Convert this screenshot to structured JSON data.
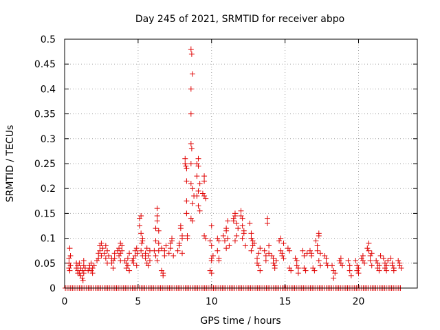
{
  "chart_data": {
    "type": "scatter",
    "title": "Day 245 of 2021, SRMTID for receiver abpo",
    "xlabel": "GPS time / hours",
    "ylabel": "SRMTID / TECUs",
    "xlim": [
      0,
      24
    ],
    "ylim": [
      0,
      0.5
    ],
    "xticks": [
      0,
      5,
      10,
      15,
      20
    ],
    "xtick_labels": [
      "0",
      "5",
      "10",
      "15",
      "20"
    ],
    "yticks": [
      0,
      0.05,
      0.1,
      0.15,
      0.2,
      0.25,
      0.3,
      0.35,
      0.4,
      0.45,
      0.5
    ],
    "ytick_labels": [
      "0",
      "0.05",
      "0.1",
      "0.15",
      "0.2",
      "0.25",
      "0.3",
      "0.35",
      "0.4",
      "0.45",
      "0.5"
    ],
    "grid": true,
    "marker": "+",
    "color": "#e00000",
    "series": [
      {
        "name": "SRMTID",
        "points": [
          [
            0.3,
            0.06
          ],
          [
            0.3,
            0.05
          ],
          [
            0.35,
            0.08
          ],
          [
            0.35,
            0.035
          ],
          [
            0.4,
            0.065
          ],
          [
            0.3,
            0.04
          ],
          [
            0.4,
            0.045
          ],
          [
            0.8,
            0.05
          ],
          [
            0.8,
            0.04
          ],
          [
            0.9,
            0.045
          ],
          [
            0.9,
            0.035
          ],
          [
            0.9,
            0.03
          ],
          [
            1.0,
            0.05
          ],
          [
            1.0,
            0.03
          ],
          [
            1.1,
            0.04
          ],
          [
            1.1,
            0.025
          ],
          [
            1.2,
            0.035
          ],
          [
            1.2,
            0.02
          ],
          [
            1.3,
            0.055
          ],
          [
            1.3,
            0.045
          ],
          [
            1.3,
            0.03
          ],
          [
            1.4,
            0.04
          ],
          [
            1.25,
            0.015
          ],
          [
            1.6,
            0.035
          ],
          [
            1.7,
            0.045
          ],
          [
            1.7,
            0.04
          ],
          [
            1.8,
            0.05
          ],
          [
            1.8,
            0.035
          ],
          [
            1.9,
            0.04
          ],
          [
            1.9,
            0.03
          ],
          [
            2.0,
            0.045
          ],
          [
            2.2,
            0.055
          ],
          [
            2.3,
            0.07
          ],
          [
            2.3,
            0.06
          ],
          [
            2.4,
            0.085
          ],
          [
            2.4,
            0.075
          ],
          [
            2.5,
            0.065
          ],
          [
            2.5,
            0.09
          ],
          [
            2.6,
            0.08
          ],
          [
            2.7,
            0.07
          ],
          [
            2.8,
            0.06
          ],
          [
            2.8,
            0.085
          ],
          [
            2.9,
            0.05
          ],
          [
            2.9,
            0.075
          ],
          [
            3.0,
            0.065
          ],
          [
            3.2,
            0.06
          ],
          [
            3.2,
            0.05
          ],
          [
            3.3,
            0.055
          ],
          [
            3.3,
            0.04
          ],
          [
            3.4,
            0.07
          ],
          [
            3.4,
            0.06
          ],
          [
            3.6,
            0.075
          ],
          [
            3.7,
            0.08
          ],
          [
            3.7,
            0.065
          ],
          [
            3.8,
            0.07
          ],
          [
            3.8,
            0.055
          ],
          [
            3.8,
            0.09
          ],
          [
            3.9,
            0.075
          ],
          [
            3.9,
            0.085
          ],
          [
            4.1,
            0.055
          ],
          [
            4.2,
            0.05
          ],
          [
            4.2,
            0.04
          ],
          [
            4.3,
            0.06
          ],
          [
            4.3,
            0.045
          ],
          [
            4.4,
            0.07
          ],
          [
            4.4,
            0.035
          ],
          [
            4.6,
            0.055
          ],
          [
            4.7,
            0.06
          ],
          [
            4.7,
            0.05
          ],
          [
            4.8,
            0.075
          ],
          [
            4.8,
            0.065
          ],
          [
            4.9,
            0.045
          ],
          [
            4.9,
            0.08
          ],
          [
            4.95,
            0.07
          ],
          [
            5.1,
            0.14
          ],
          [
            5.1,
            0.125
          ],
          [
            5.2,
            0.145
          ],
          [
            5.2,
            0.11
          ],
          [
            5.3,
            0.1
          ],
          [
            5.3,
            0.095
          ],
          [
            5.25,
            0.09
          ],
          [
            5.2,
            0.075
          ],
          [
            5.3,
            0.065
          ],
          [
            5.5,
            0.07
          ],
          [
            5.5,
            0.06
          ],
          [
            5.6,
            0.08
          ],
          [
            5.6,
            0.05
          ],
          [
            5.7,
            0.065
          ],
          [
            5.7,
            0.045
          ],
          [
            5.8,
            0.075
          ],
          [
            5.8,
            0.055
          ],
          [
            6.1,
            0.075
          ],
          [
            6.2,
            0.12
          ],
          [
            6.2,
            0.095
          ],
          [
            6.3,
            0.16
          ],
          [
            6.3,
            0.145
          ],
          [
            6.3,
            0.135
          ],
          [
            6.4,
            0.115
          ],
          [
            6.4,
            0.09
          ],
          [
            6.2,
            0.065
          ],
          [
            6.4,
            0.075
          ],
          [
            6.3,
            0.055
          ],
          [
            6.6,
            0.035
          ],
          [
            6.7,
            0.03
          ],
          [
            6.7,
            0.025
          ],
          [
            6.6,
            0.08
          ],
          [
            6.8,
            0.075
          ],
          [
            6.9,
            0.085
          ],
          [
            6.8,
            0.065
          ],
          [
            7.1,
            0.07
          ],
          [
            7.2,
            0.09
          ],
          [
            7.2,
            0.08
          ],
          [
            7.3,
            0.1
          ],
          [
            7.3,
            0.095
          ],
          [
            7.4,
            0.065
          ],
          [
            7.7,
            0.075
          ],
          [
            7.8,
            0.09
          ],
          [
            7.8,
            0.085
          ],
          [
            7.9,
            0.12
          ],
          [
            7.9,
            0.125
          ],
          [
            8.0,
            0.105
          ],
          [
            8.0,
            0.1
          ],
          [
            8.0,
            0.07
          ],
          [
            8.2,
            0.26
          ],
          [
            8.2,
            0.25
          ],
          [
            8.25,
            0.245
          ],
          [
            8.3,
            0.24
          ],
          [
            8.3,
            0.215
          ],
          [
            8.3,
            0.175
          ],
          [
            8.3,
            0.15
          ],
          [
            8.35,
            0.105
          ],
          [
            8.35,
            0.1
          ],
          [
            8.6,
            0.48
          ],
          [
            8.65,
            0.47
          ],
          [
            8.7,
            0.43
          ],
          [
            8.6,
            0.4
          ],
          [
            8.6,
            0.35
          ],
          [
            8.6,
            0.29
          ],
          [
            8.65,
            0.28
          ],
          [
            8.6,
            0.25
          ],
          [
            8.7,
            0.2
          ],
          [
            8.6,
            0.21
          ],
          [
            8.7,
            0.17
          ],
          [
            8.6,
            0.14
          ],
          [
            8.7,
            0.135
          ],
          [
            8.8,
            0.185
          ],
          [
            9.0,
            0.25
          ],
          [
            9.1,
            0.26
          ],
          [
            9.1,
            0.245
          ],
          [
            9.0,
            0.225
          ],
          [
            9.2,
            0.21
          ],
          [
            9.1,
            0.195
          ],
          [
            9.0,
            0.185
          ],
          [
            9.1,
            0.165
          ],
          [
            9.2,
            0.155
          ],
          [
            9.5,
            0.225
          ],
          [
            9.5,
            0.215
          ],
          [
            9.4,
            0.19
          ],
          [
            9.5,
            0.185
          ],
          [
            9.6,
            0.18
          ],
          [
            9.5,
            0.105
          ],
          [
            9.6,
            0.1
          ],
          [
            9.9,
            0.095
          ],
          [
            10.0,
            0.085
          ],
          [
            10.0,
            0.06
          ],
          [
            10.1,
            0.065
          ],
          [
            10.0,
            0.055
          ],
          [
            9.9,
            0.035
          ],
          [
            10.0,
            0.03
          ],
          [
            10.0,
            0.125
          ],
          [
            10.4,
            0.1
          ],
          [
            10.5,
            0.095
          ],
          [
            10.4,
            0.075
          ],
          [
            10.5,
            0.06
          ],
          [
            10.5,
            0.055
          ],
          [
            10.8,
            0.105
          ],
          [
            10.9,
            0.095
          ],
          [
            11.0,
            0.115
          ],
          [
            11.0,
            0.12
          ],
          [
            11.1,
            0.135
          ],
          [
            11.1,
            0.1
          ],
          [
            11.2,
            0.085
          ],
          [
            11.0,
            0.08
          ],
          [
            11.5,
            0.14
          ],
          [
            11.5,
            0.135
          ],
          [
            11.6,
            0.15
          ],
          [
            11.6,
            0.145
          ],
          [
            11.7,
            0.13
          ],
          [
            11.7,
            0.105
          ],
          [
            11.6,
            0.095
          ],
          [
            11.8,
            0.12
          ],
          [
            12.0,
            0.155
          ],
          [
            12.0,
            0.145
          ],
          [
            12.1,
            0.14
          ],
          [
            12.1,
            0.125
          ],
          [
            12.2,
            0.115
          ],
          [
            12.2,
            0.11
          ],
          [
            12.1,
            0.1
          ],
          [
            12.3,
            0.085
          ],
          [
            12.6,
            0.13
          ],
          [
            12.7,
            0.11
          ],
          [
            12.7,
            0.1
          ],
          [
            12.8,
            0.095
          ],
          [
            12.8,
            0.085
          ],
          [
            12.9,
            0.09
          ],
          [
            12.7,
            0.075
          ],
          [
            13.1,
            0.05
          ],
          [
            13.1,
            0.06
          ],
          [
            13.2,
            0.07
          ],
          [
            13.2,
            0.045
          ],
          [
            13.3,
            0.035
          ],
          [
            13.3,
            0.08
          ],
          [
            13.6,
            0.075
          ],
          [
            13.7,
            0.065
          ],
          [
            13.7,
            0.055
          ],
          [
            13.8,
            0.14
          ],
          [
            13.8,
            0.13
          ],
          [
            13.9,
            0.085
          ],
          [
            13.9,
            0.07
          ],
          [
            14.1,
            0.065
          ],
          [
            14.2,
            0.06
          ],
          [
            14.2,
            0.05
          ],
          [
            14.3,
            0.045
          ],
          [
            14.3,
            0.04
          ],
          [
            14.4,
            0.055
          ],
          [
            14.6,
            0.095
          ],
          [
            14.7,
            0.1
          ],
          [
            14.7,
            0.075
          ],
          [
            14.8,
            0.07
          ],
          [
            14.8,
            0.065
          ],
          [
            14.9,
            0.06
          ],
          [
            14.9,
            0.09
          ],
          [
            15.2,
            0.08
          ],
          [
            15.3,
            0.075
          ],
          [
            15.3,
            0.04
          ],
          [
            15.4,
            0.035
          ],
          [
            15.7,
            0.06
          ],
          [
            15.8,
            0.055
          ],
          [
            15.8,
            0.045
          ],
          [
            15.9,
            0.04
          ],
          [
            15.9,
            0.03
          ],
          [
            16.2,
            0.075
          ],
          [
            16.3,
            0.065
          ],
          [
            16.3,
            0.04
          ],
          [
            16.4,
            0.035
          ],
          [
            16.5,
            0.07
          ],
          [
            16.7,
            0.075
          ],
          [
            16.8,
            0.07
          ],
          [
            16.8,
            0.065
          ],
          [
            16.9,
            0.04
          ],
          [
            17.0,
            0.035
          ],
          [
            17.1,
            0.095
          ],
          [
            17.2,
            0.085
          ],
          [
            17.2,
            0.075
          ],
          [
            17.3,
            0.11
          ],
          [
            17.3,
            0.105
          ],
          [
            17.4,
            0.07
          ],
          [
            17.3,
            0.055
          ],
          [
            17.4,
            0.045
          ],
          [
            17.7,
            0.065
          ],
          [
            17.8,
            0.06
          ],
          [
            17.8,
            0.05
          ],
          [
            17.9,
            0.045
          ],
          [
            18.2,
            0.045
          ],
          [
            18.3,
            0.035
          ],
          [
            18.3,
            0.02
          ],
          [
            18.4,
            0.03
          ],
          [
            18.7,
            0.055
          ],
          [
            18.8,
            0.05
          ],
          [
            18.8,
            0.06
          ],
          [
            18.9,
            0.045
          ],
          [
            19.3,
            0.055
          ],
          [
            19.4,
            0.045
          ],
          [
            19.4,
            0.035
          ],
          [
            19.5,
            0.025
          ],
          [
            19.8,
            0.055
          ],
          [
            19.9,
            0.045
          ],
          [
            19.9,
            0.035
          ],
          [
            20.0,
            0.03
          ],
          [
            20.0,
            0.04
          ],
          [
            20.2,
            0.06
          ],
          [
            20.3,
            0.065
          ],
          [
            20.3,
            0.055
          ],
          [
            20.4,
            0.05
          ],
          [
            20.6,
            0.08
          ],
          [
            20.7,
            0.09
          ],
          [
            20.7,
            0.075
          ],
          [
            20.8,
            0.065
          ],
          [
            20.8,
            0.055
          ],
          [
            20.9,
            0.07
          ],
          [
            20.9,
            0.045
          ],
          [
            21.2,
            0.055
          ],
          [
            21.3,
            0.05
          ],
          [
            21.3,
            0.04
          ],
          [
            21.4,
            0.045
          ],
          [
            21.4,
            0.035
          ],
          [
            21.5,
            0.065
          ],
          [
            21.7,
            0.06
          ],
          [
            21.8,
            0.05
          ],
          [
            21.8,
            0.04
          ],
          [
            21.9,
            0.045
          ],
          [
            21.9,
            0.035
          ],
          [
            22.0,
            0.055
          ],
          [
            22.2,
            0.06
          ],
          [
            22.3,
            0.05
          ],
          [
            22.3,
            0.045
          ],
          [
            22.4,
            0.04
          ],
          [
            22.4,
            0.035
          ],
          [
            22.7,
            0.055
          ],
          [
            22.8,
            0.05
          ],
          [
            22.8,
            0.045
          ],
          [
            22.9,
            0.04
          ]
        ],
        "baseline_zero_points": {
          "start": 0.05,
          "end": 22.95,
          "step": 0.12,
          "value": 0
        }
      }
    ]
  }
}
